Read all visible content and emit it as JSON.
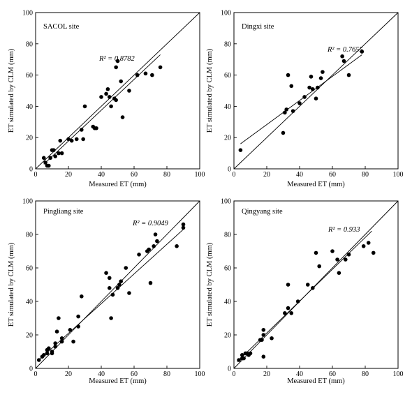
{
  "chart_data": [
    {
      "type": "scatter",
      "site_label": "SACOL site",
      "r2_label": "R² = 0.8782",
      "xlabel": "Measured ET (mm)",
      "ylabel": "ET simulated by CLM (mm)",
      "xlim": [
        0,
        100
      ],
      "ylim": [
        0,
        100
      ],
      "ticks": [
        "0",
        "20",
        "40",
        "60",
        "80",
        "100"
      ],
      "one_to_one_line": true,
      "fit_line": {
        "x": [
          5,
          76
        ],
        "y": [
          3,
          73
        ]
      },
      "series": [
        {
          "x": [
            5,
            6,
            7,
            8,
            9,
            10,
            11,
            12,
            14,
            15,
            16,
            20,
            22,
            25,
            28,
            29,
            30,
            35,
            36,
            37,
            40,
            43,
            44,
            45,
            46,
            48,
            49,
            49,
            50,
            50,
            52,
            53,
            57,
            62,
            67,
            71,
            76
          ],
          "y": [
            7,
            4,
            2,
            2,
            7,
            12,
            12,
            8,
            10,
            18,
            10,
            19,
            18,
            19,
            25,
            19,
            40,
            27,
            26,
            26,
            46,
            48,
            51,
            46,
            40,
            45,
            44,
            65,
            69,
            69,
            56,
            33,
            50,
            60,
            61,
            60,
            65
          ]
        }
      ]
    },
    {
      "type": "scatter",
      "site_label": "Dingxi site",
      "r2_label": "R² = 0.7655",
      "xlabel": "Measured ET (mm)",
      "ylabel": "ET simulated by CLM (mm)",
      "xlim": [
        0,
        100
      ],
      "ylim": [
        0,
        100
      ],
      "ticks": [
        "0",
        "20",
        "40",
        "60",
        "80",
        "100"
      ],
      "one_to_one_line": true,
      "fit_line": {
        "x": [
          4,
          78
        ],
        "y": [
          16,
          73
        ]
      },
      "series": [
        {
          "x": [
            4,
            30,
            31,
            32,
            33,
            35,
            36,
            40,
            43,
            46,
            47,
            48,
            50,
            51,
            53,
            54,
            66,
            67,
            70,
            78
          ],
          "y": [
            12,
            23,
            36,
            38,
            60,
            53,
            37,
            42,
            46,
            52,
            59,
            51,
            45,
            52,
            58,
            62,
            72,
            69,
            60,
            75
          ]
        }
      ]
    },
    {
      "type": "scatter",
      "site_label": "Pingliang site",
      "r2_label": "R² = 0.9049",
      "xlabel": "Measured ET (mm)",
      "ylabel": "ET simulated by CLM (mm)",
      "xlim": [
        0,
        100
      ],
      "ylim": [
        0,
        100
      ],
      "ticks": [
        "0",
        "20",
        "40",
        "60",
        "80",
        "100"
      ],
      "one_to_one_line": true,
      "fit_line": {
        "x": [
          2,
          90
        ],
        "y": [
          5,
          83
        ]
      },
      "series": [
        {
          "x": [
            2,
            4,
            5,
            7,
            7,
            8,
            10,
            10,
            12,
            12,
            13,
            14,
            16,
            16,
            21,
            23,
            26,
            26,
            28,
            43,
            45,
            45,
            46,
            47,
            50,
            51,
            52,
            55,
            57,
            63,
            68,
            69,
            70,
            72,
            73,
            74,
            86,
            90,
            90
          ],
          "y": [
            5,
            7,
            8,
            9,
            11,
            12,
            10,
            9,
            15,
            13,
            22,
            30,
            16,
            18,
            23,
            16,
            31,
            25,
            43,
            57,
            54,
            48,
            30,
            44,
            48,
            50,
            52,
            60,
            45,
            68,
            70,
            71,
            51,
            73,
            80,
            76,
            73,
            84,
            86
          ]
        }
      ]
    },
    {
      "type": "scatter",
      "site_label": "Qingyang site",
      "r2_label": "R² = 0.933",
      "xlabel": "Measured ET (mm)",
      "ylabel": "ET simulated by CLM (mm)",
      "xlim": [
        0,
        100
      ],
      "ylim": [
        0,
        100
      ],
      "ticks": [
        "0",
        "20",
        "40",
        "60",
        "80",
        "100"
      ],
      "one_to_one_line": true,
      "fit_line": {
        "x": [
          2,
          84
        ],
        "y": [
          4,
          82
        ]
      },
      "series": [
        {
          "x": [
            3,
            5,
            5,
            6,
            7,
            8,
            9,
            10,
            16,
            17,
            18,
            18,
            18,
            23,
            31,
            33,
            33,
            35,
            39,
            45,
            48,
            50,
            52,
            60,
            63,
            64,
            68,
            70,
            79,
            82,
            85
          ],
          "y": [
            5,
            6,
            8,
            6,
            9,
            9,
            8,
            9,
            17,
            17,
            20,
            23,
            7,
            18,
            33,
            36,
            50,
            33,
            40,
            50,
            48,
            69,
            61,
            70,
            65,
            57,
            65,
            68,
            73,
            75,
            69
          ]
        }
      ]
    }
  ]
}
